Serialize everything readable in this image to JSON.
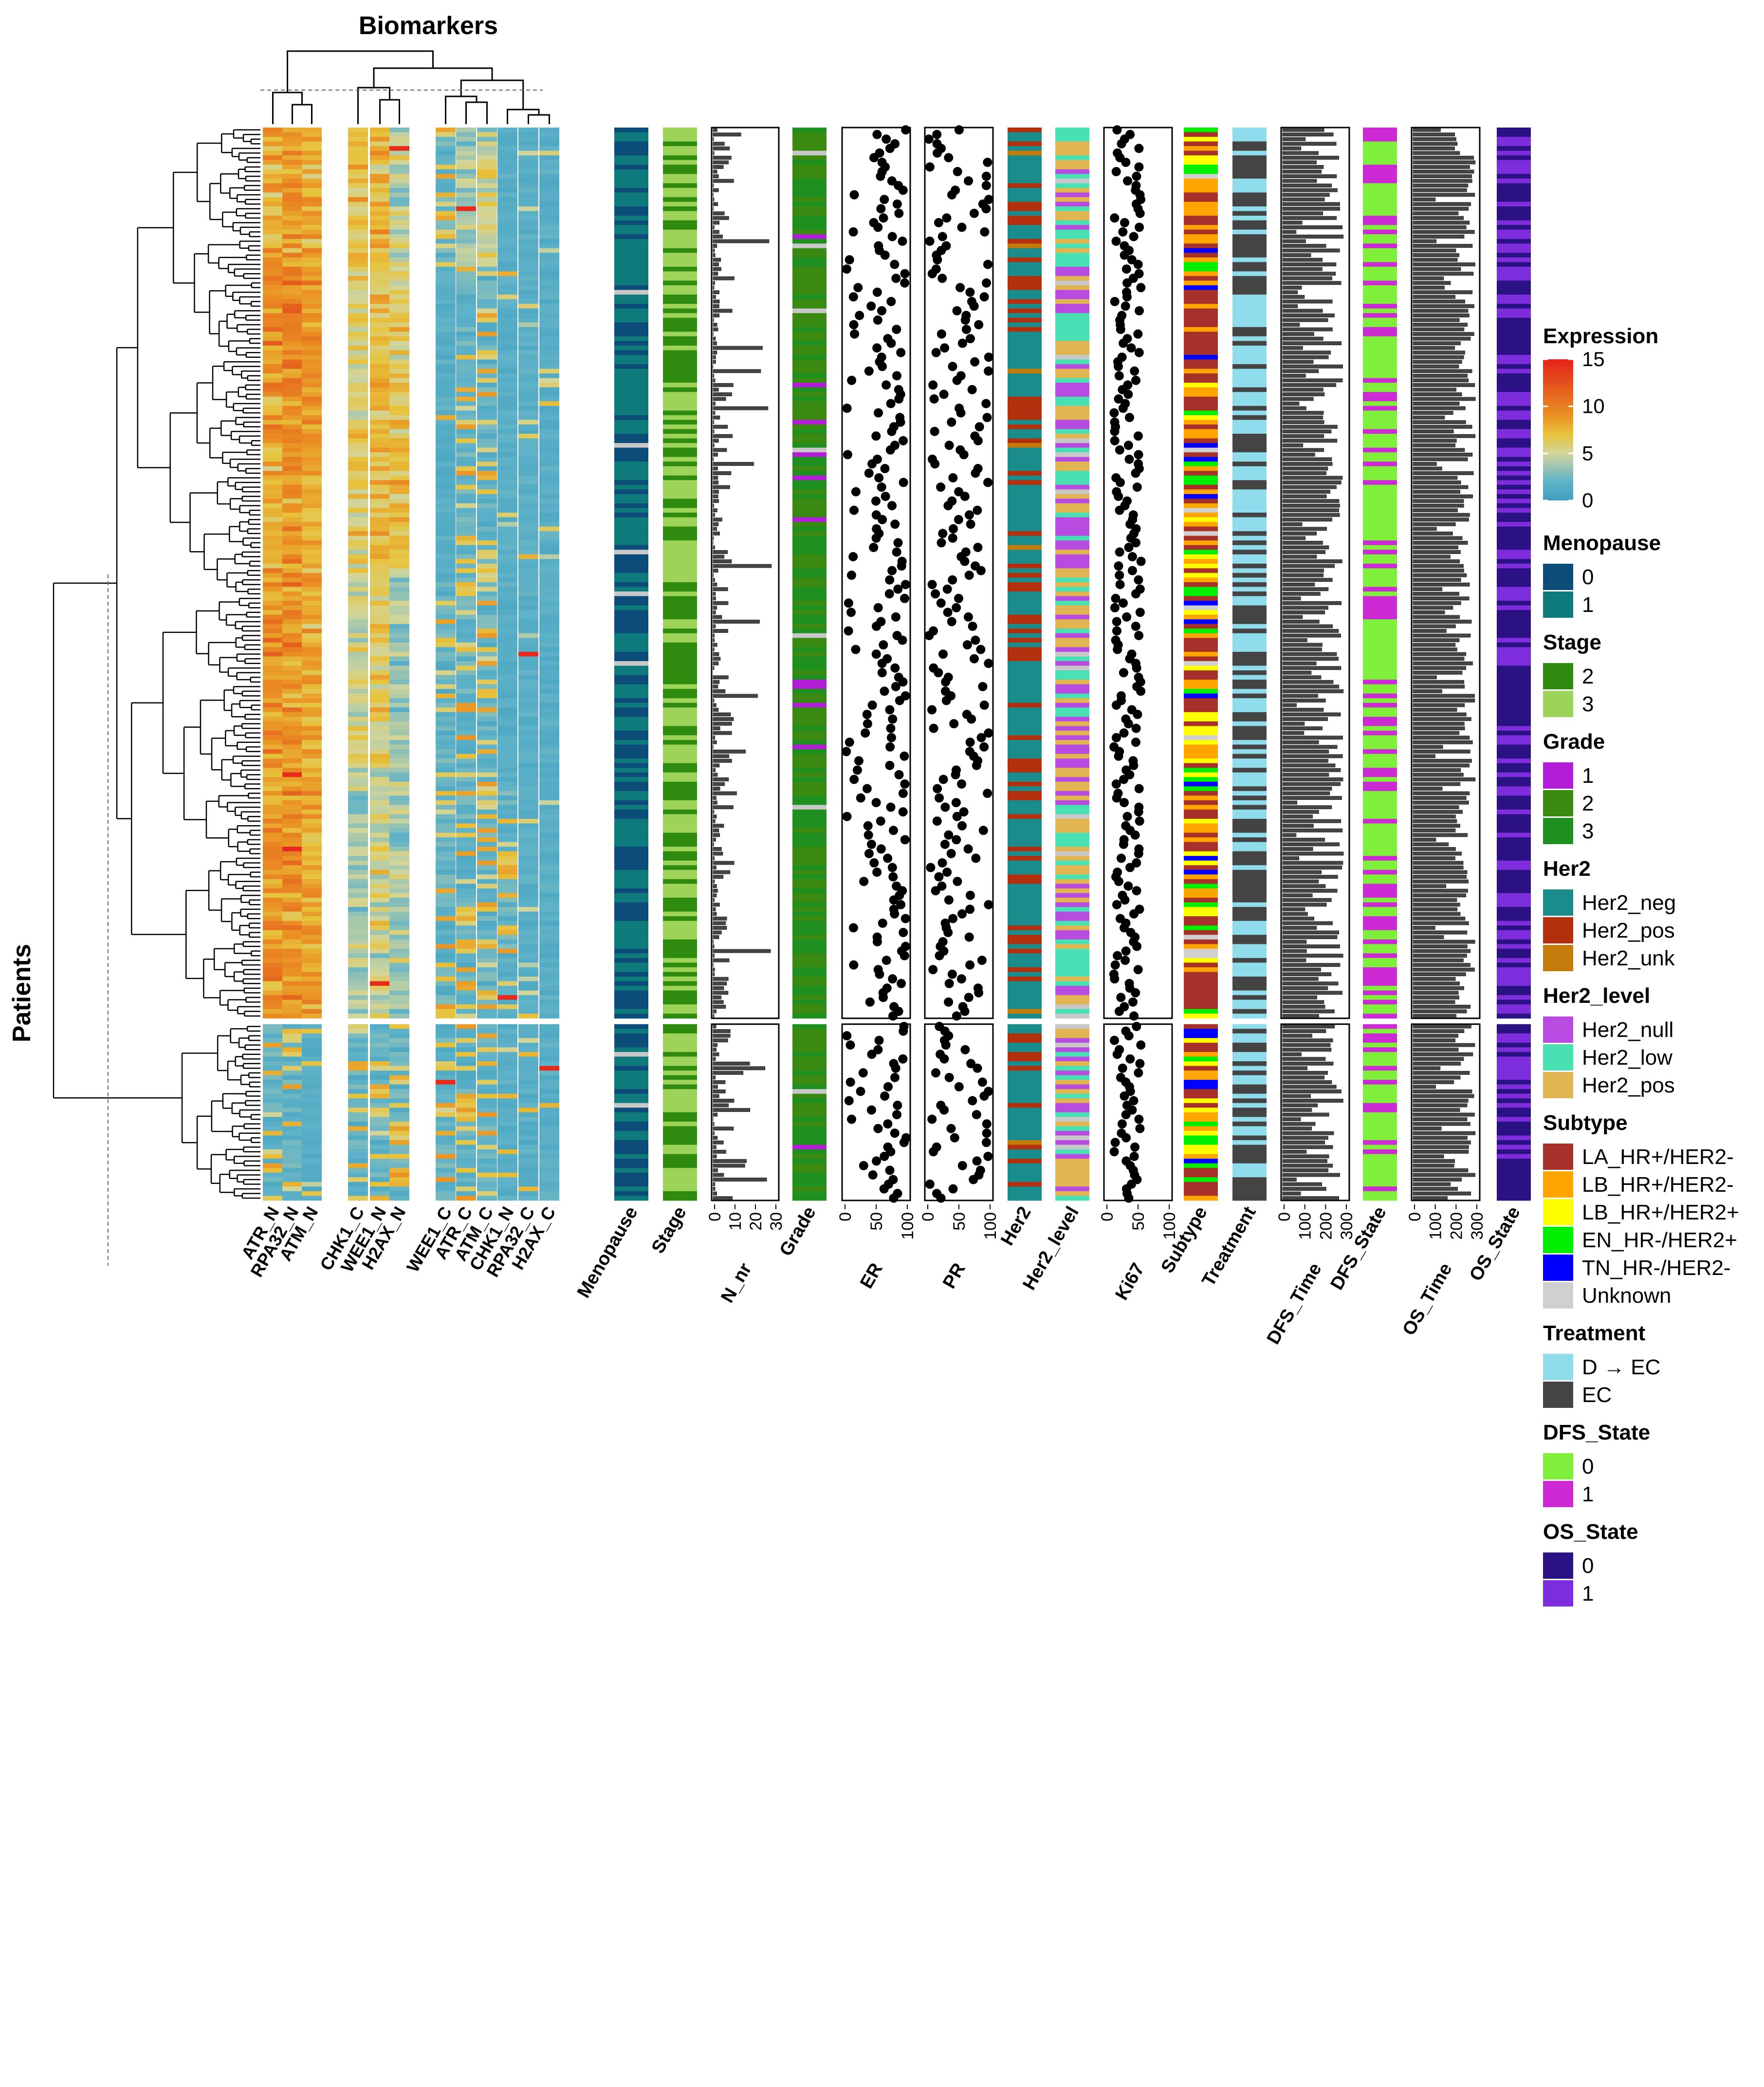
{
  "chart_data": {
    "type": "heatmap",
    "title": "Biomarkers",
    "row_title": "Patients",
    "n_patients": 230,
    "row_split": [
      192,
      38
    ],
    "columns": [
      "ATR_N",
      "RPA32_N",
      "ATM_N",
      "CHK1_C",
      "WEE1_N",
      "H2AX_N",
      "WEE1_C",
      "ATR_C",
      "ATM_C",
      "CHK1_N",
      "RPA32_C",
      "H2AX_C"
    ],
    "column_groups": [
      3,
      3,
      6
    ],
    "expression_scale": {
      "title": "Expression",
      "min": 0,
      "max": 15,
      "ticks": [
        "0",
        "5",
        "10",
        "15"
      ],
      "colors": [
        "#3f9fbe",
        "#5fb2c8",
        "#d2d59b",
        "#e7c33c",
        "#ea9224",
        "#e4591d",
        "#e6211c"
      ]
    },
    "expression_rows_profile": [
      {
        "from": 0,
        "to": 30,
        "levels": [
          8,
          9,
          8,
          7,
          7,
          5,
          2,
          4,
          5,
          1,
          1,
          1
        ]
      },
      {
        "from": 30,
        "to": 58,
        "levels": [
          9,
          10,
          9,
          6,
          7,
          6,
          1,
          2,
          2,
          1,
          1,
          1
        ]
      },
      {
        "from": 58,
        "to": 95,
        "levels": [
          8,
          9,
          8,
          6,
          7,
          7,
          1,
          2,
          2,
          1,
          1,
          1
        ]
      },
      {
        "from": 95,
        "to": 143,
        "levels": [
          9,
          9,
          8,
          5,
          6,
          4,
          3,
          3,
          3,
          1,
          1,
          1
        ]
      },
      {
        "from": 143,
        "to": 192,
        "levels": [
          9,
          9,
          8,
          4,
          5,
          4,
          2,
          3,
          2,
          2,
          1,
          1
        ]
      },
      {
        "from": 192,
        "to": 230,
        "levels": [
          2,
          2,
          1,
          2,
          3,
          3,
          2,
          2,
          2,
          1,
          1,
          1
        ]
      }
    ],
    "annotation_tracks": [
      {
        "name": "Menopause",
        "kind": "categorical"
      },
      {
        "name": "Stage",
        "kind": "categorical"
      },
      {
        "name": "N_nr",
        "kind": "bar",
        "axis": [
          0,
          30
        ],
        "ticks": [
          "0",
          "10",
          "20",
          "30"
        ]
      },
      {
        "name": "Grade",
        "kind": "categorical"
      },
      {
        "name": "ER",
        "kind": "points",
        "axis": [
          0,
          100
        ],
        "ticks": [
          "0",
          "50",
          "100"
        ]
      },
      {
        "name": "PR",
        "kind": "points",
        "axis": [
          0,
          100
        ],
        "ticks": [
          "0",
          "50",
          "100"
        ]
      },
      {
        "name": "Her2",
        "kind": "categorical"
      },
      {
        "name": "Her2_level",
        "kind": "categorical"
      },
      {
        "name": "Ki67",
        "kind": "points",
        "axis": [
          0,
          100
        ],
        "ticks": [
          "0",
          "50",
          "100"
        ]
      },
      {
        "name": "Subtype",
        "kind": "categorical"
      },
      {
        "name": "Treatment",
        "kind": "categorical"
      },
      {
        "name": "DFS_Time",
        "kind": "bar",
        "axis": [
          0,
          300
        ],
        "ticks": [
          "0",
          "100",
          "200",
          "300"
        ]
      },
      {
        "name": "DFS_State",
        "kind": "categorical"
      },
      {
        "name": "OS_Time",
        "kind": "bar",
        "axis": [
          0,
          300
        ],
        "ticks": [
          "0",
          "100",
          "200",
          "300"
        ]
      },
      {
        "name": "OS_State",
        "kind": "categorical"
      }
    ],
    "legends": [
      {
        "title": "Menopause",
        "items": [
          {
            "label": "0",
            "color": "#0b4c78"
          },
          {
            "label": "1",
            "color": "#0f7a7c"
          }
        ]
      },
      {
        "title": "Stage",
        "items": [
          {
            "label": "2",
            "color": "#2e8b10"
          },
          {
            "label": "3",
            "color": "#9ed35a"
          }
        ]
      },
      {
        "title": "Grade",
        "items": [
          {
            "label": "1",
            "color": "#b21ed6"
          },
          {
            "label": "2",
            "color": "#3a8a12"
          },
          {
            "label": "3",
            "color": "#1f8f1f"
          }
        ]
      },
      {
        "title": "Her2",
        "items": [
          {
            "label": "Her2_neg",
            "color": "#1a8c8c"
          },
          {
            "label": "Her2_pos",
            "color": "#b3300e"
          },
          {
            "label": "Her2_unk",
            "color": "#c37b0c"
          }
        ]
      },
      {
        "title": "Her2_level",
        "items": [
          {
            "label": "Her2_null",
            "color": "#b84ce0"
          },
          {
            "label": "Her2_low",
            "color": "#49e0b4"
          },
          {
            "label": "Her2_pos",
            "color": "#e2b553"
          }
        ]
      },
      {
        "title": "Subtype",
        "items": [
          {
            "label": "LA_HR+/HER2-",
            "color": "#a8302a"
          },
          {
            "label": "LB_HR+/HER2-",
            "color": "#ffa500"
          },
          {
            "label": "LB_HR+/HER2+",
            "color": "#ffff00"
          },
          {
            "label": "EN_HR-/HER2+",
            "color": "#00ee00"
          },
          {
            "label": "TN_HR-/HER2-",
            "color": "#0000ff"
          },
          {
            "label": "Unknown",
            "color": "#d0d0d0"
          }
        ]
      },
      {
        "title": "Treatment",
        "items": [
          {
            "label": "D → EC",
            "color": "#8fdcec"
          },
          {
            "label": "EC",
            "color": "#444444"
          }
        ]
      },
      {
        "title": "DFS_State",
        "items": [
          {
            "label": "0",
            "color": "#7fef3c"
          },
          {
            "label": "1",
            "color": "#cc2ad2"
          }
        ]
      },
      {
        "title": "OS_State",
        "items": [
          {
            "label": "0",
            "color": "#2a1284"
          },
          {
            "label": "1",
            "color": "#7d2ddc"
          }
        ]
      }
    ],
    "missing_color": "#c8c8c8"
  }
}
